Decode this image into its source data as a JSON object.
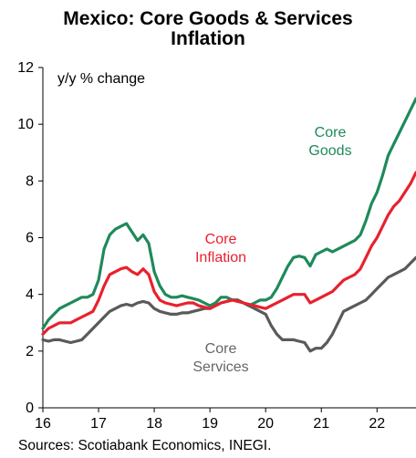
{
  "title_line1": "Mexico: Core Goods & Services",
  "title_line2": "Inflation",
  "source": "Sources: Scotiabank Economics, INEGI.",
  "chart_data": {
    "type": "line",
    "title": "Mexico: Core Goods & Services Inflation",
    "ylabel": "y/y % change",
    "xlim": [
      16,
      22.7
    ],
    "ylim": [
      0,
      12
    ],
    "x_ticks": [
      "16",
      "17",
      "18",
      "19",
      "20",
      "21",
      "22"
    ],
    "y_ticks": [
      "0",
      "2",
      "4",
      "6",
      "8",
      "10",
      "12"
    ],
    "grid": false,
    "legend": "inline annotations",
    "series": [
      {
        "name": "Core Goods",
        "label_lines": [
          "Core",
          "Goods"
        ],
        "color": "#1e8a5a",
        "x": [
          16,
          16.1,
          16.2,
          16.3,
          16.4,
          16.5,
          16.6,
          16.7,
          16.8,
          16.9,
          17,
          17.1,
          17.2,
          17.3,
          17.4,
          17.5,
          17.6,
          17.7,
          17.8,
          17.9,
          18,
          18.1,
          18.2,
          18.3,
          18.4,
          18.5,
          18.6,
          18.7,
          18.8,
          18.9,
          19,
          19.1,
          19.2,
          19.3,
          19.4,
          19.5,
          19.6,
          19.7,
          19.8,
          19.9,
          20,
          20.1,
          20.2,
          20.3,
          20.4,
          20.5,
          20.6,
          20.7,
          20.8,
          20.9,
          21,
          21.1,
          21.2,
          21.3,
          21.4,
          21.5,
          21.6,
          21.7,
          21.8,
          21.9,
          22,
          22.1,
          22.2,
          22.3,
          22.4,
          22.5,
          22.6,
          22.7
        ],
        "values": [
          2.8,
          3.1,
          3.3,
          3.5,
          3.6,
          3.7,
          3.8,
          3.9,
          3.9,
          4.0,
          4.5,
          5.6,
          6.1,
          6.3,
          6.4,
          6.5,
          6.2,
          5.9,
          6.1,
          5.8,
          4.8,
          4.3,
          4.0,
          3.9,
          3.9,
          3.95,
          3.9,
          3.85,
          3.8,
          3.7,
          3.6,
          3.7,
          3.9,
          3.9,
          3.8,
          3.8,
          3.7,
          3.6,
          3.7,
          3.8,
          3.8,
          3.9,
          4.2,
          4.6,
          5.0,
          5.3,
          5.35,
          5.3,
          5.0,
          5.4,
          5.5,
          5.6,
          5.5,
          5.6,
          5.7,
          5.8,
          5.9,
          6.1,
          6.6,
          7.2,
          7.6,
          8.2,
          8.9,
          9.3,
          9.7,
          10.1,
          10.5,
          10.9
        ]
      },
      {
        "name": "Core Inflation",
        "label_lines": [
          "Core",
          "Inflation"
        ],
        "color": "#e8212e",
        "x": [
          16,
          16.1,
          16.2,
          16.3,
          16.4,
          16.5,
          16.6,
          16.7,
          16.8,
          16.9,
          17,
          17.1,
          17.2,
          17.3,
          17.4,
          17.5,
          17.6,
          17.7,
          17.8,
          17.9,
          18,
          18.1,
          18.2,
          18.3,
          18.4,
          18.5,
          18.6,
          18.7,
          18.8,
          18.9,
          19,
          19.1,
          19.2,
          19.3,
          19.4,
          19.5,
          19.6,
          19.7,
          19.8,
          19.9,
          20,
          20.1,
          20.2,
          20.3,
          20.4,
          20.5,
          20.6,
          20.7,
          20.8,
          20.9,
          21,
          21.1,
          21.2,
          21.3,
          21.4,
          21.5,
          21.6,
          21.7,
          21.8,
          21.9,
          22,
          22.1,
          22.2,
          22.3,
          22.4,
          22.5,
          22.6,
          22.7
        ],
        "values": [
          2.6,
          2.8,
          2.9,
          3.0,
          3.0,
          3.0,
          3.1,
          3.2,
          3.3,
          3.4,
          3.8,
          4.3,
          4.7,
          4.8,
          4.9,
          4.95,
          4.8,
          4.7,
          4.9,
          4.7,
          4.1,
          3.8,
          3.7,
          3.65,
          3.6,
          3.65,
          3.7,
          3.7,
          3.6,
          3.55,
          3.5,
          3.6,
          3.7,
          3.75,
          3.8,
          3.75,
          3.7,
          3.65,
          3.6,
          3.55,
          3.5,
          3.6,
          3.7,
          3.8,
          3.9,
          4.0,
          4.0,
          4.0,
          3.7,
          3.8,
          3.9,
          4.0,
          4.1,
          4.3,
          4.5,
          4.6,
          4.7,
          4.9,
          5.3,
          5.7,
          6.0,
          6.4,
          6.8,
          7.1,
          7.3,
          7.6,
          7.9,
          8.3
        ]
      },
      {
        "name": "Core Services",
        "label_lines": [
          "Core",
          "Services"
        ],
        "color": "#5a5a5a",
        "x": [
          16,
          16.1,
          16.2,
          16.3,
          16.4,
          16.5,
          16.6,
          16.7,
          16.8,
          16.9,
          17,
          17.1,
          17.2,
          17.3,
          17.4,
          17.5,
          17.6,
          17.7,
          17.8,
          17.9,
          18,
          18.1,
          18.2,
          18.3,
          18.4,
          18.5,
          18.6,
          18.7,
          18.8,
          18.9,
          19,
          19.1,
          19.2,
          19.3,
          19.4,
          19.5,
          19.6,
          19.7,
          19.8,
          19.9,
          20,
          20.1,
          20.2,
          20.3,
          20.4,
          20.5,
          20.6,
          20.7,
          20.8,
          20.9,
          21,
          21.1,
          21.2,
          21.3,
          21.4,
          21.5,
          21.6,
          21.7,
          21.8,
          21.9,
          22,
          22.1,
          22.2,
          22.3,
          22.4,
          22.5,
          22.6,
          22.7
        ],
        "values": [
          2.4,
          2.35,
          2.4,
          2.4,
          2.35,
          2.3,
          2.35,
          2.4,
          2.6,
          2.8,
          3.0,
          3.2,
          3.4,
          3.5,
          3.6,
          3.65,
          3.6,
          3.7,
          3.75,
          3.7,
          3.5,
          3.4,
          3.35,
          3.3,
          3.3,
          3.35,
          3.35,
          3.4,
          3.45,
          3.5,
          3.5,
          3.6,
          3.7,
          3.75,
          3.8,
          3.8,
          3.7,
          3.6,
          3.5,
          3.4,
          3.3,
          2.9,
          2.6,
          2.4,
          2.4,
          2.4,
          2.35,
          2.3,
          2.0,
          2.1,
          2.1,
          2.3,
          2.6,
          3.0,
          3.4,
          3.5,
          3.6,
          3.7,
          3.8,
          4.0,
          4.2,
          4.4,
          4.6,
          4.7,
          4.8,
          4.9,
          5.1,
          5.3
        ]
      }
    ]
  }
}
